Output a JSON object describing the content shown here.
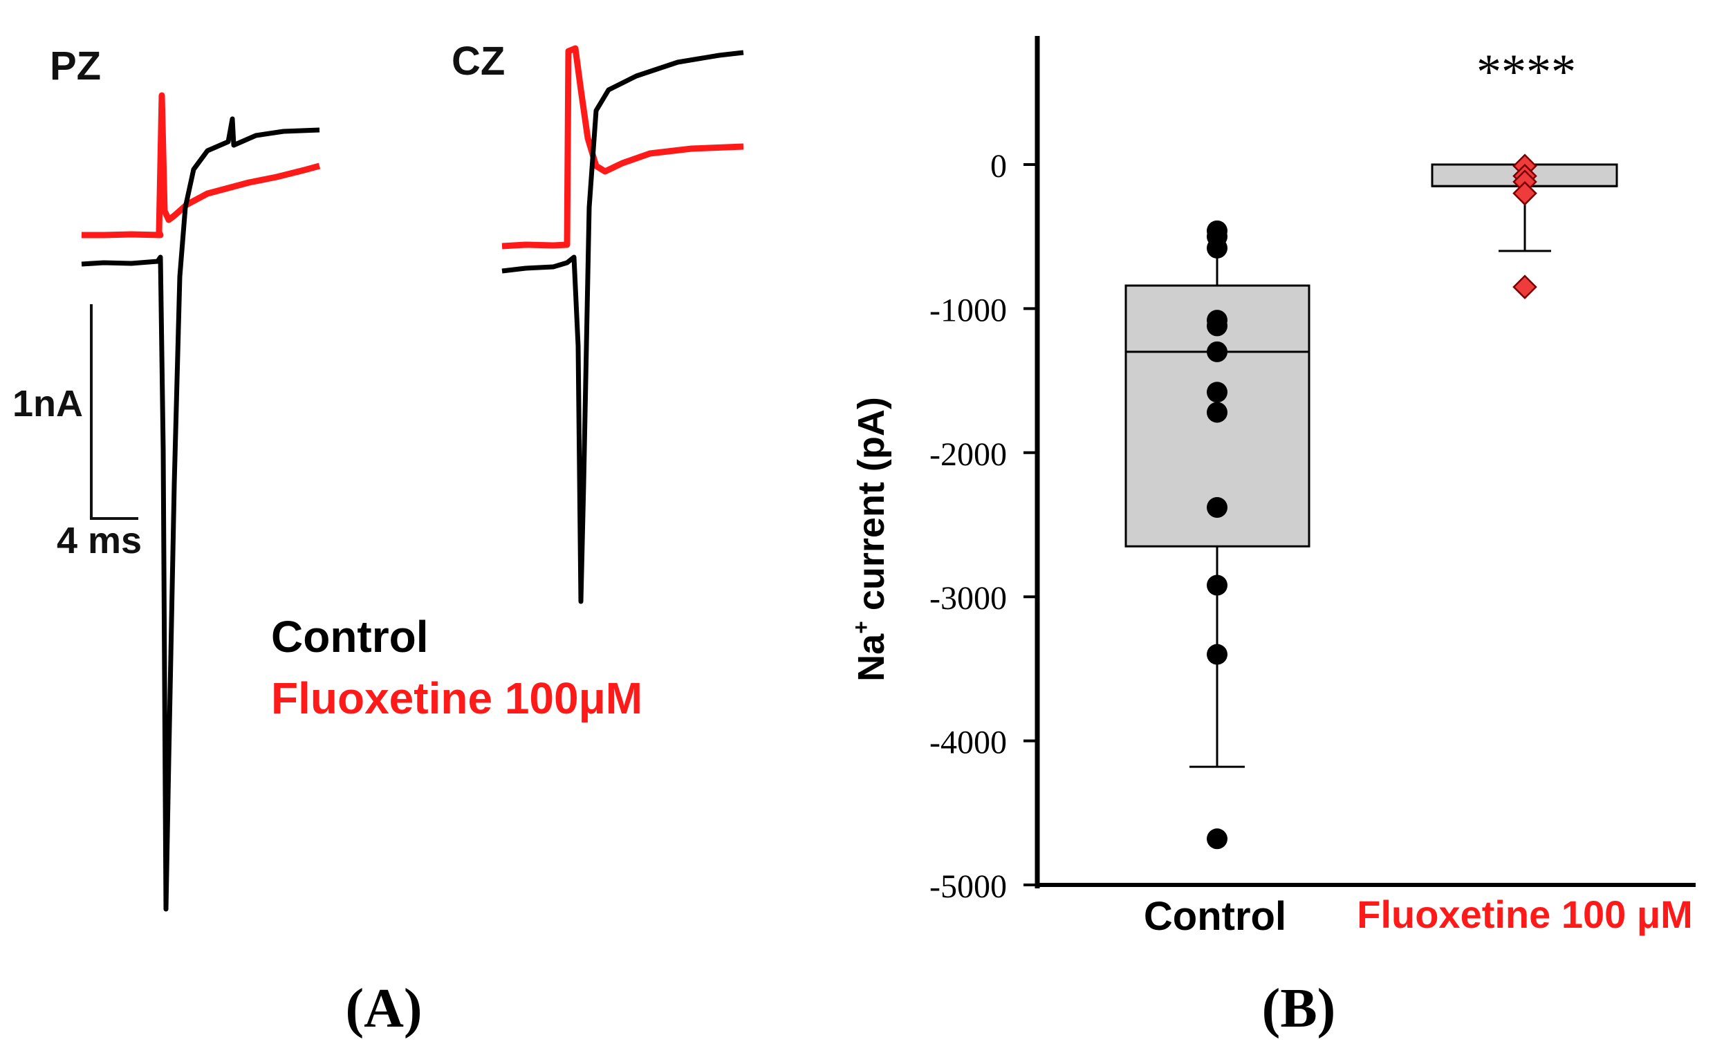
{
  "panel_a": {
    "label_letter": "A",
    "title_left": "PZ",
    "title_right": "CZ",
    "scalebar_y": "1nA",
    "scalebar_x": "4 ms",
    "legend": [
      {
        "name": "Control",
        "color": "#000000"
      },
      {
        "name": "Fluoxetine 100μM",
        "color": "#ff1a1a"
      }
    ]
  },
  "panel_b": {
    "label_letter": "B",
    "significance": "****"
  },
  "colors": {
    "control": "#000000",
    "fluoxetine": "#ff1a1a",
    "box_fill": "#cfcfcf",
    "marker_fluox": "#ee3b3b"
  },
  "chart_data": {
    "type": "box",
    "ylabel": "Na+ current (pA)",
    "ylabel_main": "Na",
    "ylabel_sup": "+",
    "ylabel_rest": " current (pA)",
    "ylim": [
      -5000,
      900
    ],
    "yticks": [
      0,
      -1000,
      -2000,
      -3000,
      -4000,
      -5000
    ],
    "ytick_labels": [
      "0",
      "-1000",
      "-2000",
      "-3000",
      "-4000",
      "-5000"
    ],
    "categories": [
      "Control",
      "Fluoxetine 100 μM"
    ],
    "series": [
      {
        "name": "Control",
        "q1": -2650,
        "median": -1300,
        "q3": -840,
        "whisker_low": -4180,
        "whisker_high": -490,
        "points": [
          -460,
          -500,
          -580,
          -1080,
          -1120,
          -1300,
          -1580,
          -1720,
          -2380,
          -2920,
          -3400,
          -4680
        ]
      },
      {
        "name": "Fluoxetine 100 μM",
        "q1": -150,
        "median": -150,
        "q3": 0,
        "whisker_low": -600,
        "whisker_high": 0,
        "points": [
          -10,
          -80,
          -120,
          -200,
          -850
        ]
      }
    ]
  }
}
